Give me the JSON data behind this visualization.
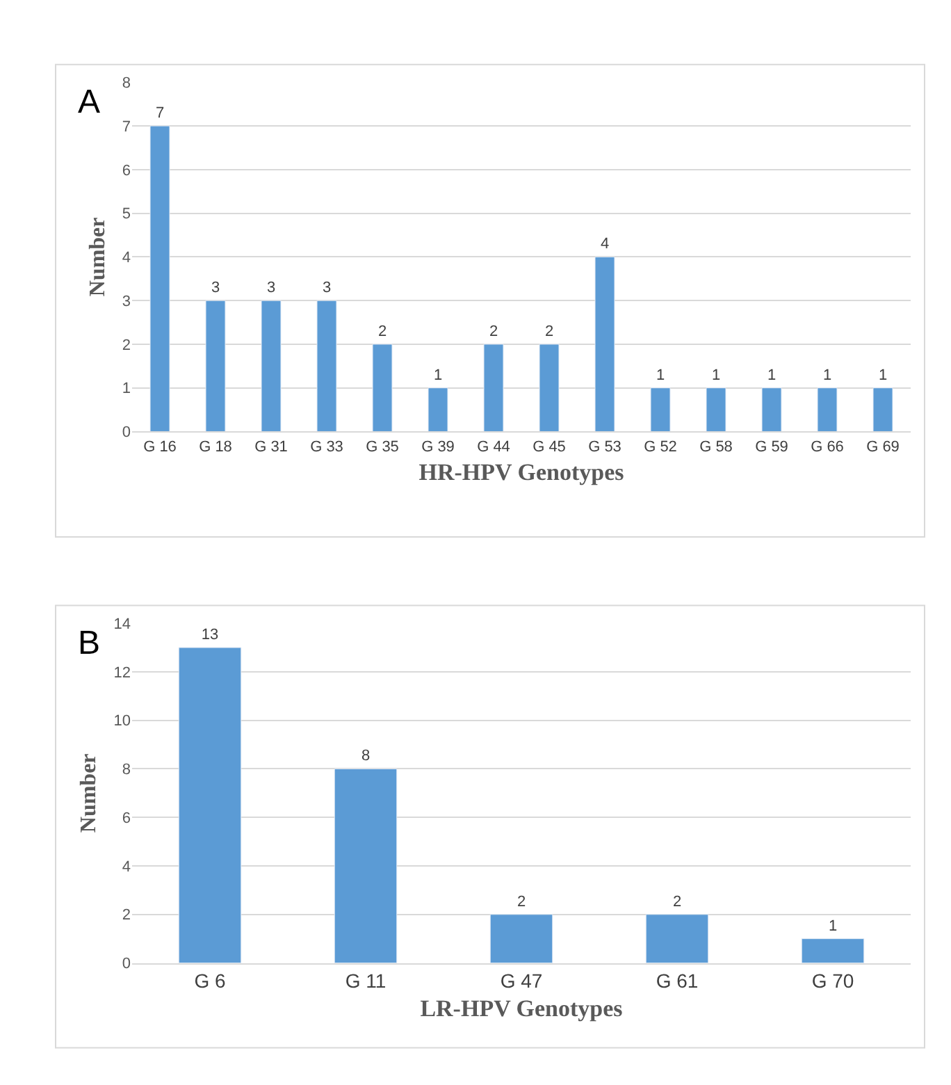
{
  "chart_data": [
    {
      "type": "bar",
      "annotations": [
        "A"
      ],
      "xlabel": "HR-HPV Genotypes",
      "ylabel": "Number",
      "categories": [
        "G 16",
        "G 18",
        "G 31",
        "G 33",
        "G 35",
        "G 39",
        "G 44",
        "G 45",
        "G 53",
        "G 52",
        "G 58",
        "G 59",
        "G 66",
        "G 69"
      ],
      "values": [
        7,
        3,
        3,
        3,
        2,
        1,
        2,
        2,
        4,
        1,
        1,
        1,
        1,
        1
      ],
      "color": "#5b9bd5",
      "ylim": [
        0,
        8
      ],
      "yticks": [
        0,
        1,
        2,
        3,
        4,
        5,
        6,
        7,
        8
      ],
      "grid": "y",
      "data_labels": true
    },
    {
      "type": "bar",
      "annotations": [
        "B"
      ],
      "xlabel": "LR-HPV Genotypes",
      "ylabel": "Number",
      "categories": [
        "G 6",
        "G 11",
        "G 47",
        "G 61",
        "G 70"
      ],
      "values": [
        13,
        8,
        2,
        2,
        1
      ],
      "color": "#5b9bd5",
      "ylim": [
        0,
        14
      ],
      "yticks": [
        0,
        2,
        4,
        6,
        8,
        10,
        12,
        14
      ],
      "grid": "y",
      "data_labels": true
    }
  ]
}
